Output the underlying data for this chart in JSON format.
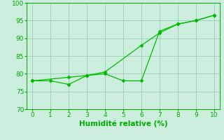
{
  "line1_x": [
    0,
    1,
    2,
    3,
    4,
    5,
    6,
    7,
    8,
    9,
    10
  ],
  "line1_y": [
    78,
    78,
    77,
    79.5,
    80,
    78,
    78,
    92,
    94,
    95,
    96.5
  ],
  "line2_x": [
    0,
    2,
    3,
    4,
    6,
    7,
    8,
    9,
    10
  ],
  "line2_y": [
    78,
    79,
    79.5,
    80.5,
    88,
    91.5,
    94,
    95,
    96.5
  ],
  "line_color": "#00bb00",
  "marker": "D",
  "marker_size": 2.5,
  "xlabel": "Humidité relative (%)",
  "xlim": [
    -0.3,
    10.3
  ],
  "ylim": [
    70,
    100
  ],
  "yticks": [
    70,
    75,
    80,
    85,
    90,
    95,
    100
  ],
  "xticks": [
    0,
    1,
    2,
    3,
    4,
    5,
    6,
    7,
    8,
    9,
    10
  ],
  "bg_color": "#cceedd",
  "grid_color": "#99ccbb",
  "tick_color": "#00aa00",
  "label_color": "#00aa00",
  "tick_fontsize": 6.5,
  "xlabel_fontsize": 7.5
}
